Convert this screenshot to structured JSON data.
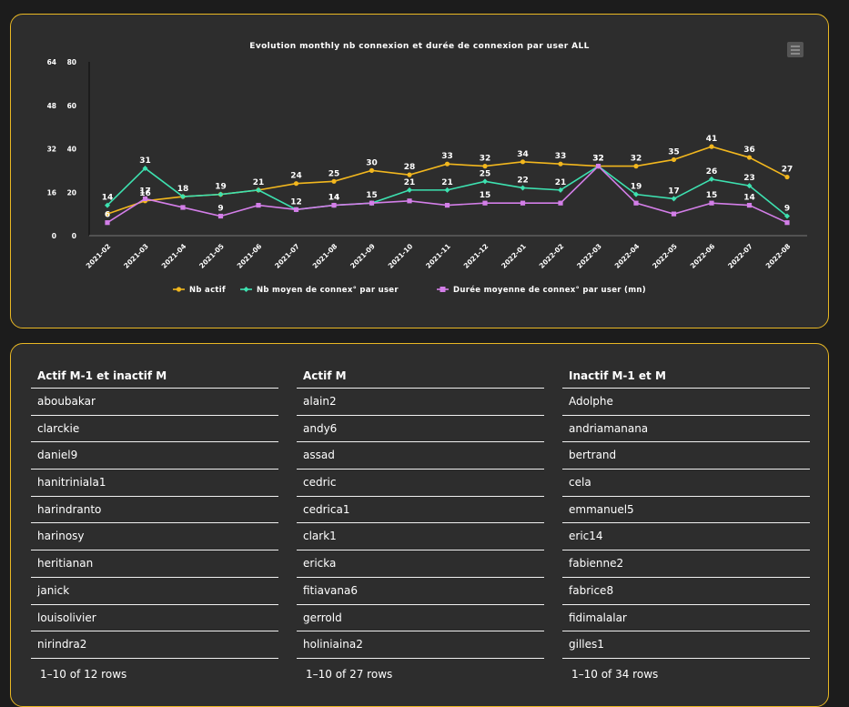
{
  "chart": {
    "title": "Evolution monthly nb connexion et durée de connexion par user ALL",
    "menu_icon": "hamburger-icon"
  },
  "chart_data": {
    "type": "line",
    "categories": [
      "2021-02",
      "2021-03",
      "2021-04",
      "2021-05",
      "2021-06",
      "2021-07",
      "2021-08",
      "2021-09",
      "2021-10",
      "2021-11",
      "2021-12",
      "2022-01",
      "2022-02",
      "2022-03",
      "2022-04",
      "2022-05",
      "2022-06",
      "2022-07",
      "2022-08"
    ],
    "yaxis_left": {
      "ticks": [
        0,
        16,
        32,
        48,
        64
      ]
    },
    "yaxis_right": {
      "ticks": [
        0,
        20,
        40,
        60,
        80
      ],
      "ylim": [
        0,
        80
      ]
    },
    "legend_position": "bottom",
    "series": [
      {
        "name": "Nb actif",
        "color": "#f2b71e",
        "marker": "circle",
        "values": [
          10,
          16,
          18,
          19,
          21,
          24,
          25,
          30,
          28,
          33,
          32,
          34,
          33,
          32,
          32,
          35,
          41,
          36,
          27
        ],
        "labels": [
          "",
          "16",
          "",
          "",
          "",
          "24",
          "25",
          "30",
          "28",
          "33",
          "32",
          "34",
          "33",
          "32",
          "32",
          "35",
          "41",
          "36",
          "27"
        ]
      },
      {
        "name": "Nb moyen de connex° par user",
        "color": "#3de1b0",
        "marker": "diamond",
        "values": [
          14,
          31,
          18,
          19,
          21,
          12,
          14,
          15,
          21,
          21,
          25,
          22,
          21,
          32,
          19,
          17,
          26,
          23,
          9
        ],
        "labels": [
          "14",
          "31",
          "18",
          "19",
          "21",
          "12",
          "14",
          "15",
          "21",
          "21",
          "25",
          "22",
          "21",
          "",
          "19",
          "17",
          "26",
          "23",
          "9"
        ]
      },
      {
        "name": "Durée moyenne de connex° par user (mn)",
        "color": "#d37ee8",
        "marker": "square",
        "values": [
          6,
          17,
          13,
          9,
          14,
          12,
          14,
          15,
          16,
          14,
          15,
          15,
          15,
          32,
          15,
          10,
          15,
          14,
          6
        ],
        "labels": [
          "6",
          "17",
          "",
          "9",
          "",
          "",
          "14",
          "",
          "",
          "",
          "15",
          "",
          "",
          "32",
          "",
          "",
          "15",
          "14",
          ""
        ]
      }
    ]
  },
  "tables": [
    {
      "header": "Actif M-1 et inactif M",
      "rows": [
        "aboubakar",
        "clarckie",
        "daniel9",
        "hanitriniala1",
        "harindranto",
        "harinosy",
        "heritianan",
        "janick",
        "louisolivier",
        "nirindra2"
      ],
      "footer": "1–10 of 12 rows"
    },
    {
      "header": "Actif M",
      "rows": [
        "alain2",
        "andy6",
        "assad",
        "cedric",
        "cedrica1",
        "clark1",
        "ericka",
        "fitiavana6",
        "gerrold",
        "holiniaina2"
      ],
      "footer": "1–10 of 27 rows"
    },
    {
      "header": "Inactif M-1 et M",
      "rows": [
        "Adolphe",
        "andriamanana",
        "bertrand",
        "cela",
        "emmanuel5",
        "eric14",
        "fabienne2",
        "fabrice8",
        "fidimalalar",
        "gilles1"
      ],
      "footer": "1–10 of 34 rows"
    }
  ]
}
